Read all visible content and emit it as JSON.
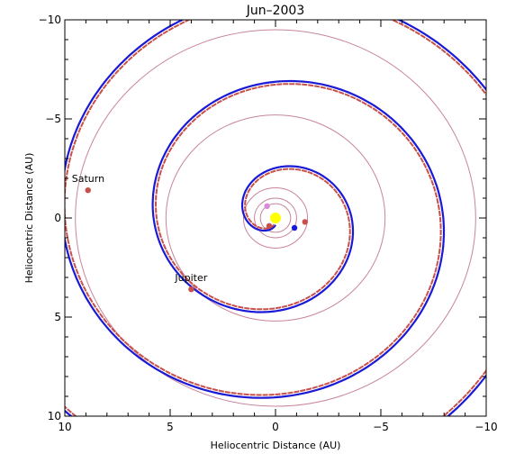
{
  "chart_data": {
    "type": "scatter",
    "title": "Jun–2003",
    "xlabel": "Heliocentric Distance (AU)",
    "ylabel": "Heliocentric Distance (AU)",
    "xlim": [
      10,
      -10
    ],
    "ylim": [
      10,
      -10
    ],
    "x_ticks": [
      10,
      5,
      0,
      -5,
      -10
    ],
    "x_tick_labels": [
      "10",
      "5",
      "0",
      "−5",
      "−10"
    ],
    "y_ticks": [
      -10,
      -5,
      0,
      5,
      10
    ],
    "y_tick_labels": [
      "−10",
      "−5",
      "0",
      "5",
      "10"
    ],
    "grid": false,
    "colors": {
      "orbit": "#c8849c",
      "spiral_blue": "#1a1ad6",
      "spiral_red": "#c8504a",
      "sun": "#ffff00",
      "planet": "#c8504a",
      "planet_inner": "#d88ad8",
      "earth": "#1a1ad6"
    },
    "orbits": [
      {
        "radius": 0.72
      },
      {
        "radius": 1.0
      },
      {
        "radius": 1.52
      },
      {
        "radius": 5.2
      },
      {
        "radius": 9.5
      }
    ],
    "spirals": [
      {
        "color_key": "spiral_blue",
        "start_angle_deg": 270,
        "width": 2.2
      },
      {
        "color_key": "spiral_red",
        "start_angle_deg": 258,
        "width": 2.0,
        "dashed": true
      }
    ],
    "sun": {
      "x": 0,
      "y": 0
    },
    "planets": [
      {
        "label": "Saturn",
        "x": 8.9,
        "y": -1.4,
        "color_key": "planet"
      },
      {
        "label": "Jupiter",
        "x": 4.0,
        "y": 3.6,
        "color_key": "planet"
      },
      {
        "label": "",
        "x": -1.4,
        "y": 0.2,
        "color_key": "planet"
      },
      {
        "label": "",
        "x": 0.3,
        "y": 0.4,
        "color_key": "planet"
      },
      {
        "label": "",
        "x": 0.4,
        "y": -0.6,
        "color_key": "planet_inner"
      },
      {
        "label": "",
        "x": -0.9,
        "y": 0.5,
        "color_key": "earth"
      }
    ]
  }
}
